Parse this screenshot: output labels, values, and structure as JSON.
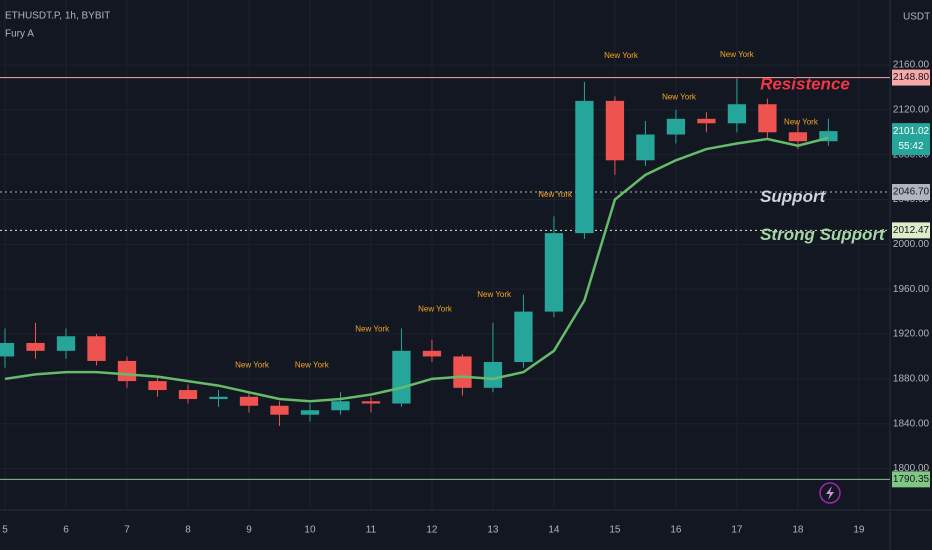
{
  "chart_data": {
    "type": "candlestick",
    "title": "ETHUSDT.P, 1h, BYBIT",
    "subtitle": "Fury A",
    "y_unit": "USDT",
    "xlim": [
      4.918,
      19.51
    ],
    "xticks": [
      5,
      6,
      7,
      8,
      9,
      10,
      11,
      12,
      13,
      14,
      15,
      16,
      17,
      18,
      19
    ],
    "ylim": [
      1763,
      2218
    ],
    "yticks": [
      {
        "value": 1800,
        "label": "1800.00"
      },
      {
        "value": 1840,
        "label": "1840.00"
      },
      {
        "value": 1880,
        "label": "1880.00"
      },
      {
        "value": 1920,
        "label": "1920.00"
      },
      {
        "value": 1960,
        "label": "1960.00"
      },
      {
        "value": 2000,
        "label": "2000.00"
      },
      {
        "value": 2040,
        "label": "2040.00"
      },
      {
        "value": 2080,
        "label": "2080.00"
      },
      {
        "value": 2120,
        "label": "2120.00"
      },
      {
        "value": 2160,
        "label": "2160.00"
      }
    ],
    "grid": true,
    "up_color": "#26a69a",
    "down_color": "#ef5350",
    "candles": {
      "x": [
        5,
        5.5,
        6,
        6.5,
        7,
        7.5,
        8,
        8.5,
        9,
        9.5,
        10,
        10.5,
        11,
        11.5,
        12,
        12.5,
        13,
        13.5,
        14,
        14.5,
        15,
        15.5,
        16,
        16.5,
        17,
        17.5,
        18,
        18.5
      ],
      "open": [
        1900,
        1912,
        1905,
        1918,
        1896,
        1878,
        1870,
        1862,
        1864,
        1856,
        1848,
        1852,
        1860,
        1858,
        1905,
        1900,
        1872,
        1895,
        1940,
        2010,
        2128,
        2075,
        2098,
        2112,
        2108,
        2125,
        2100,
        2092
      ],
      "high": [
        1925,
        1930,
        1925,
        1920,
        1900,
        1882,
        1875,
        1870,
        1868,
        1860,
        1858,
        1868,
        1864,
        1925,
        1915,
        1902,
        1930,
        1955,
        2025,
        2145,
        2132,
        2110,
        2120,
        2118,
        2148,
        2130,
        2108,
        2112
      ],
      "low": [
        1890,
        1898,
        1898,
        1892,
        1872,
        1864,
        1858,
        1855,
        1850,
        1838,
        1842,
        1848,
        1850,
        1855,
        1895,
        1865,
        1868,
        1890,
        1935,
        2005,
        2062,
        2070,
        2090,
        2100,
        2100,
        2095,
        2085,
        2088
      ],
      "close": [
        1912,
        1905,
        1918,
        1896,
        1878,
        1870,
        1862,
        1864,
        1856,
        1848,
        1852,
        1860,
        1858,
        1905,
        1900,
        1872,
        1895,
        1940,
        2010,
        2128,
        2075,
        2098,
        2112,
        2108,
        2125,
        2100,
        2092,
        2101
      ]
    },
    "series": [
      {
        "color": "#66bb6a",
        "values": [
          1880,
          1884,
          1886,
          1886,
          1884,
          1882,
          1878,
          1874,
          1868,
          1862,
          1860,
          1862,
          1866,
          1872,
          1880,
          1882,
          1880,
          1886,
          1905,
          1950,
          2040,
          2062,
          2075,
          2085,
          2090,
          2094,
          2088,
          2095
        ]
      }
    ],
    "levels": [
      {
        "value": 2148.8,
        "label": "2148.80",
        "color": "#f7a8a8",
        "line": "solid"
      },
      {
        "value": 2046.7,
        "label": "2046.70",
        "color": "#b2b5be",
        "line": "dotted"
      },
      {
        "value": 2012.47,
        "label": "2012.47",
        "color": "#dcedc8",
        "line": "dotted"
      },
      {
        "value": 1790.35,
        "label": "1790.35",
        "color": "#81c784",
        "line": "solid"
      }
    ],
    "last_price": {
      "value": 2101.02,
      "countdown": "55:42",
      "color": "#26a69a"
    },
    "annotations": [
      {
        "text": "Resistence",
        "x": 17.38,
        "y": 2142,
        "color": "#f23645"
      },
      {
        "text": "Support",
        "x": 17.38,
        "y": 2042,
        "color": "#d1d4dc"
      },
      {
        "text": "Strong Support",
        "x": 17.38,
        "y": 2008,
        "color": "#a5d6a7"
      }
    ],
    "sessions": [
      {
        "text": "New York",
        "x": 17.0,
        "y": 2169
      },
      {
        "text": "New York",
        "x": 15.1,
        "y": 2168
      },
      {
        "text": "New York",
        "x": 16.05,
        "y": 2131
      },
      {
        "text": "New York",
        "x": 18.05,
        "y": 2109
      },
      {
        "text": "New York",
        "x": 14.02,
        "y": 2044
      },
      {
        "text": "New York",
        "x": 13.02,
        "y": 1955
      },
      {
        "text": "New York",
        "x": 12.05,
        "y": 1942
      },
      {
        "text": "New York",
        "x": 11.02,
        "y": 1924
      },
      {
        "text": "New York",
        "x": 9.05,
        "y": 1892
      },
      {
        "text": "New York",
        "x": 10.03,
        "y": 1892
      }
    ]
  }
}
